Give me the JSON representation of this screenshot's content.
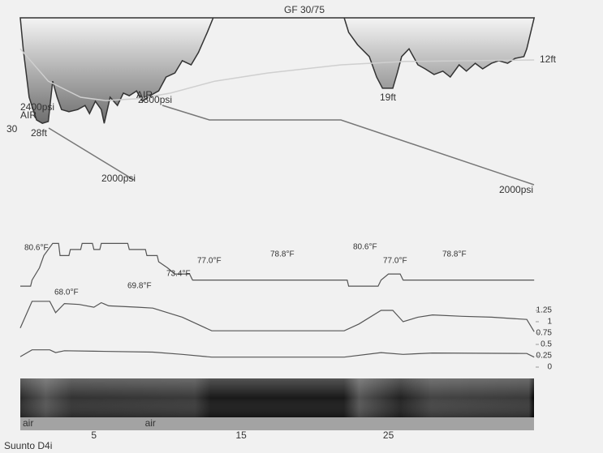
{
  "chart_data": [
    {
      "type": "area",
      "title": "GF 30/75",
      "xlim": [
        0,
        35
      ],
      "ylim": [
        0,
        30
      ],
      "yticks": [
        30
      ],
      "inverted": true,
      "x": [
        0,
        0.2,
        0.6,
        1.1,
        1.5,
        1.9,
        2.2,
        2.5,
        2.8,
        3.3,
        3.9,
        4.4,
        4.7,
        5.1,
        5.5,
        5.7,
        6.1,
        6.6,
        7.0,
        7.4,
        7.9,
        8.3,
        8.8,
        9.4,
        9.9,
        10.5,
        11.0,
        11.6,
        12.1,
        12.7,
        13.1,
        22.0,
        22.3,
        22.9,
        23.7,
        24.2,
        24.6,
        25.3,
        25.6,
        25.9,
        26.4,
        27.0,
        27.5,
        28.1,
        28.7,
        29.2,
        29.8,
        30.3,
        30.9,
        31.4,
        32.0,
        32.5,
        33.1,
        33.6,
        34.2,
        34.4,
        34.9
      ],
      "series": [
        {
          "color": "#333333",
          "values": [
            0,
            8.3,
            21.3,
            27.4,
            28.3,
            27.8,
            17,
            21.3,
            24.6,
            25.2,
            24.6,
            23.5,
            25.7,
            22.4,
            24.6,
            28.3,
            21.3,
            23.5,
            20.2,
            20.9,
            19.6,
            22.4,
            20.9,
            19.6,
            15.9,
            14.8,
            11.5,
            12.6,
            9.3,
            3.9,
            0,
            0,
            3.9,
            7.2,
            10.4,
            15.9,
            18.9,
            18.9,
            14.8,
            10.4,
            8.3,
            12.6,
            13.7,
            15.2,
            14.3,
            15.9,
            12.6,
            14.3,
            12.2,
            13.7,
            12.2,
            11.5,
            12.2,
            10.9,
            10.4,
            8.3,
            0
          ]
        },
        {
          "color": "#cfcfcf",
          "x": [
            0,
            1.9,
            4.1,
            5.8,
            8.0,
            10.2,
            13.2,
            16.8,
            21.8,
            26.2,
            34.9
          ],
          "values": [
            8.3,
            17,
            21.3,
            22.2,
            21.7,
            20.2,
            17,
            14.8,
            12.6,
            11.7,
            11.3
          ]
        }
      ],
      "annotations": [
        "2400psi",
        "AIR",
        "28ft",
        "AIR",
        "2300psi",
        "2000psi",
        "19ft",
        "12ft",
        "2000psi"
      ]
    },
    {
      "type": "line",
      "xlim": [
        0,
        35
      ],
      "ylim": [
        66,
        82
      ],
      "x": [
        0,
        0.7,
        0.8,
        1.3,
        1.6,
        2.2,
        2.6,
        2.7,
        3.3,
        3.4,
        4.1,
        4.2,
        4.9,
        5.0,
        5.4,
        5.5,
        7.3,
        7.4,
        8.5,
        8.6,
        9.3,
        9.4,
        10.0,
        10.5,
        11.5,
        11.7,
        22.2,
        22.3,
        24.3,
        24.5,
        25.0,
        25.8,
        26.0,
        34.9
      ],
      "series": [
        {
          "color": "#555555",
          "values": [
            80.6,
            80.6,
            78.8,
            75.2,
            71.6,
            68.0,
            68.0,
            71.6,
            71.6,
            69.8,
            69.8,
            68.0,
            68.0,
            69.8,
            69.8,
            68.0,
            68.0,
            69.8,
            69.8,
            71.6,
            71.6,
            73.4,
            75.2,
            77.0,
            77.0,
            78.8,
            78.8,
            80.6,
            80.6,
            78.8,
            77.0,
            77.0,
            78.8,
            78.8
          ]
        }
      ],
      "annotations": [
        "80.6°F",
        "68.0°F",
        "69.8°F",
        "73.4°F",
        "77.0°F",
        "78.8°F",
        "80.6°F",
        "77.0°F",
        "78.8°F"
      ]
    },
    {
      "type": "line",
      "xlim": [
        0,
        35
      ],
      "ylim": [
        0,
        1.5
      ],
      "yticks": [
        1.25,
        1,
        0.75,
        0.5,
        0.25,
        0
      ],
      "x": [
        0,
        0.8,
        2.0,
        2.4,
        3.0,
        4.0,
        5.0,
        5.5,
        6.0,
        8.0,
        9.0,
        10.0,
        11.0,
        13.0,
        22.0,
        23.0,
        24.5,
        25.3,
        26.0,
        27.0,
        28.0,
        30.0,
        32.0,
        34.4,
        34.9
      ],
      "series": [
        {
          "color": "#555555",
          "values": [
            0.86,
            1.45,
            1.45,
            1.2,
            1.4,
            1.38,
            1.32,
            1.42,
            1.35,
            1.32,
            1.3,
            1.2,
            1.1,
            0.8,
            0.8,
            0.95,
            1.25,
            1.25,
            1.0,
            1.1,
            1.15,
            1.12,
            1.1,
            1.05,
            0.78
          ]
        },
        {
          "color": "#555555",
          "x": [
            0,
            0.8,
            2.0,
            2.4,
            3.0,
            5.0,
            9.0,
            11.0,
            13.0,
            22.0,
            24.5,
            26.0,
            28.0,
            34.4,
            34.9
          ],
          "values": [
            0.23,
            0.38,
            0.38,
            0.32,
            0.36,
            0.35,
            0.33,
            0.28,
            0.22,
            0.22,
            0.32,
            0.28,
            0.31,
            0.3,
            0.22
          ]
        }
      ]
    },
    {
      "type": "gas",
      "xlim": [
        0,
        35
      ],
      "xticks": [
        5,
        15,
        25
      ],
      "x": [
        0,
        8.3
      ],
      "labels": [
        "air",
        "air"
      ],
      "footer": "Suunto D4i"
    }
  ]
}
